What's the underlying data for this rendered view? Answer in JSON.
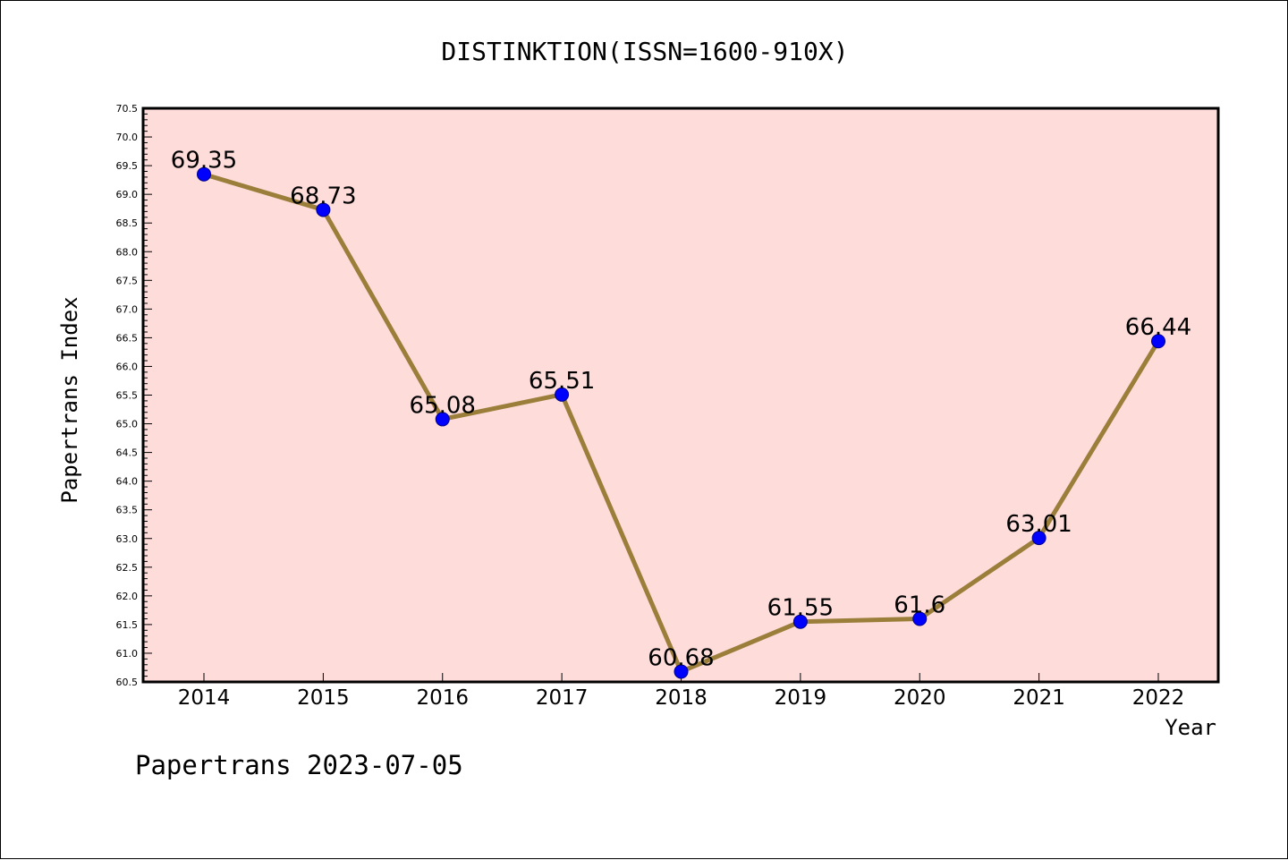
{
  "footer_text": "Papertrans 2023-07-05",
  "colors": {
    "plot_background": "#fddcda",
    "line": "#9a7e3a",
    "marker": "#0000ff",
    "marker_edge": "#00008b"
  },
  "chart_data": {
    "type": "line",
    "title": "DISTINKTION(ISSN=1600-910X)",
    "xlabel": "Year",
    "ylabel": "Papertrans Index",
    "categories": [
      "2014",
      "2015",
      "2016",
      "2017",
      "2018",
      "2019",
      "2020",
      "2021",
      "2022"
    ],
    "series": [
      {
        "values": [
          69.35,
          68.73,
          65.08,
          65.51,
          60.68,
          61.55,
          61.6,
          63.01,
          66.44
        ],
        "labels": [
          "69.35",
          "68.73",
          "65.08",
          "65.51",
          "60.68",
          "61.55",
          "61.6",
          "63.01",
          "66.44"
        ]
      }
    ],
    "ylim": [
      60.5,
      70.5
    ],
    "ytick_step": 0.5,
    "ytick_labels": [
      "60.5",
      "61.0",
      "61.5",
      "62.0",
      "62.5",
      "63.0",
      "63.5",
      "64.0",
      "64.5",
      "65.0",
      "65.5",
      "66.0",
      "66.5",
      "67.0",
      "67.5",
      "68.0",
      "68.5",
      "69.0",
      "69.5",
      "70.0",
      "70.5"
    ],
    "grid": false,
    "legend": "none"
  }
}
